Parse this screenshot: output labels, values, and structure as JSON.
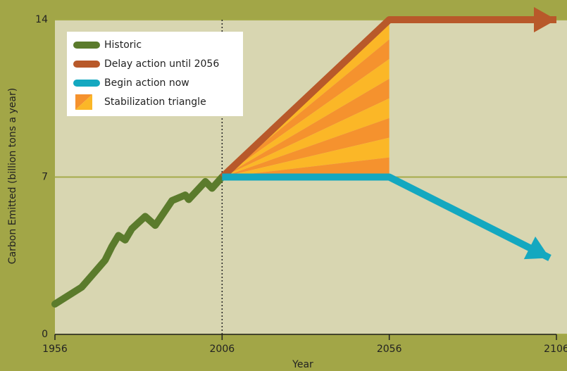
{
  "chart_data": {
    "type": "line",
    "xlabel": "Year",
    "ylabel": "Carbon Emitted (billion tons a year)",
    "xlim": [
      1956,
      2106
    ],
    "xticks": [
      1956,
      2006,
      2056,
      2106
    ],
    "ylim": [
      0,
      14
    ],
    "yticks": [
      0,
      7,
      14
    ],
    "grid": true,
    "vline": 2006,
    "legend": "upper left",
    "series": [
      {
        "name": "Historic",
        "color": "#5b7b2c",
        "x": [
          1956,
          1964,
          1971,
          1973,
          1975,
          1977,
          1979,
          1983,
          1986,
          1991,
          1995,
          1996,
          2001,
          2003,
          2006
        ],
        "values": [
          1.35,
          2.1,
          3.3,
          3.9,
          4.4,
          4.2,
          4.7,
          5.25,
          4.85,
          5.95,
          6.2,
          6.0,
          6.8,
          6.5,
          7
        ]
      },
      {
        "name": "Delay action until 2056",
        "color": "#b8592a",
        "arrow": true,
        "x": [
          2006,
          2056,
          2106
        ],
        "values": [
          7,
          14,
          14
        ]
      },
      {
        "name": "Begin action now",
        "color": "#14a8c0",
        "arrow": true,
        "x": [
          2006,
          2056,
          2104
        ],
        "values": [
          7,
          7,
          3.4
        ]
      },
      {
        "name": "Stabilization triangle",
        "colors": [
          "#fbb727",
          "#f5922e"
        ],
        "style": "polygon",
        "x": [
          2006,
          2056,
          2056
        ],
        "values": [
          7,
          14,
          7
        ]
      }
    ]
  }
}
